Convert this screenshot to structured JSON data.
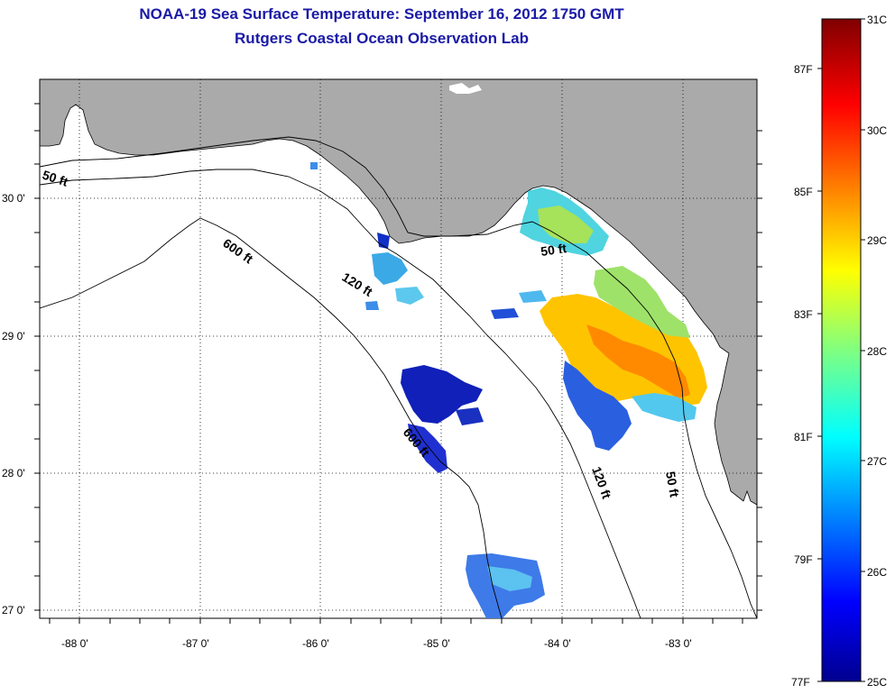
{
  "title": {
    "line1": "NOAA-19 Sea Surface Temperature:  September 16, 2012 1750 GMT",
    "line2": "Rutgers Coastal Ocean Observation Lab"
  },
  "map": {
    "lat_labels": [
      "30 0'",
      "29 0'",
      "28 0'",
      "27 0'"
    ],
    "lon_labels": [
      "-88 0'",
      "-87 0'",
      "-86 0'",
      "-85 0'",
      "-84 0'",
      "-83 0'"
    ],
    "contour_labels": {
      "c50w": "50 ft",
      "c600a": "600 ft",
      "c120a": "120 ft",
      "c600b": "600 ft",
      "c50n": "50 ft",
      "c120b": "120 ft",
      "c50e": "50 ft"
    },
    "colors": {
      "land": "#aaaaaa",
      "water": "#ffffff",
      "line": "#000000"
    }
  },
  "colorbar": {
    "fahrenheit_labels": [
      "87F",
      "85F",
      "83F",
      "81F",
      "79F",
      "77F"
    ],
    "celsius_labels": [
      "31C",
      "30C",
      "29C",
      "28C",
      "27C",
      "26C",
      "25C"
    ],
    "min_c": 25,
    "max_c": 31
  }
}
